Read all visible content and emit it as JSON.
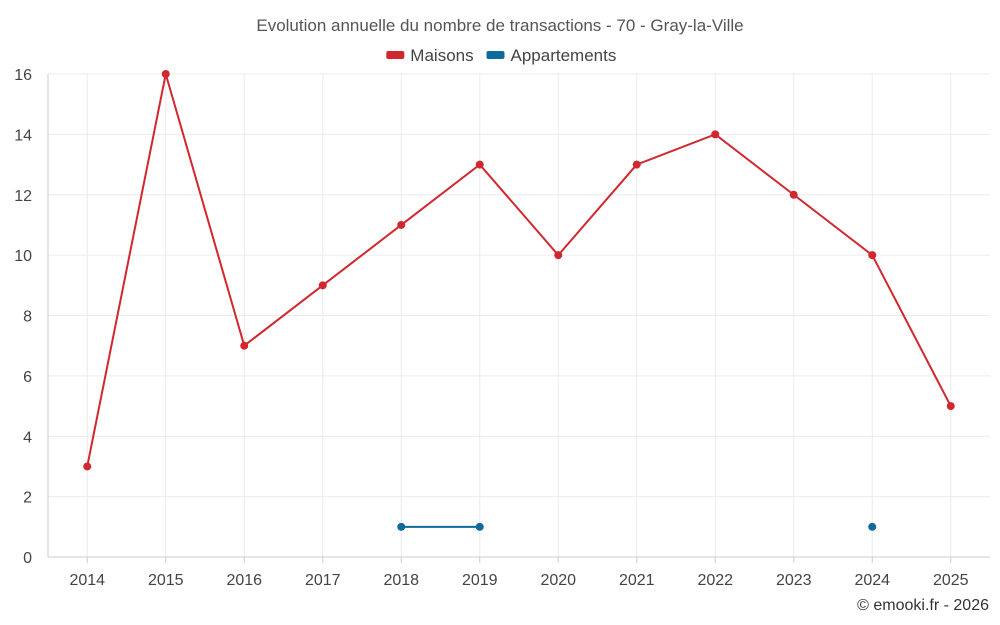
{
  "chart_data": {
    "type": "line",
    "title": "Evolution annuelle du nombre de transactions - 70 - Gray-la-Ville",
    "categories": [
      "2014",
      "2015",
      "2016",
      "2017",
      "2018",
      "2019",
      "2020",
      "2021",
      "2022",
      "2023",
      "2024",
      "2025"
    ],
    "series": [
      {
        "name": "Maisons",
        "color": "#d0282e",
        "values": [
          3,
          16,
          7,
          9,
          11,
          13,
          10,
          13,
          14,
          12,
          10,
          5
        ]
      },
      {
        "name": "Appartements",
        "color": "#0f6a9e",
        "values": [
          null,
          null,
          null,
          null,
          1,
          1,
          null,
          null,
          null,
          null,
          1,
          null
        ]
      }
    ],
    "ylim": [
      0,
      16
    ],
    "yticks": [
      0,
      2,
      4,
      6,
      8,
      10,
      12,
      14,
      16
    ],
    "grid": true,
    "legend": "top-center"
  },
  "credit": "© emooki.fr - 2026"
}
